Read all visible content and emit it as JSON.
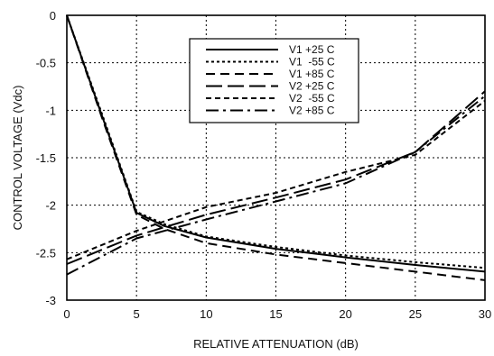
{
  "chart_data": {
    "type": "line",
    "title": "",
    "xlabel": "RELATIVE ATTENUATION (dB)",
    "ylabel": "CONTROL VOLTAGE (Vdc)",
    "xlim": [
      0,
      30
    ],
    "ylim": [
      -3,
      0
    ],
    "x_ticks": [
      0,
      5,
      10,
      15,
      20,
      25,
      30
    ],
    "y_ticks": [
      0,
      -0.5,
      -1,
      -1.5,
      -2,
      -2.5,
      -3
    ],
    "x_tick_labels": [
      "0",
      "5",
      "10",
      "15",
      "20",
      "25",
      "30"
    ],
    "y_tick_labels": [
      "0",
      "-0.5",
      "-1",
      "-1.5",
      "-2",
      "-2.5",
      "-3"
    ],
    "grid": true,
    "legend_position": "top-center",
    "series": [
      {
        "name": "V1 +25 C",
        "dash": "solid",
        "x": [
          0,
          2.5,
          5,
          7,
          10,
          15,
          20,
          25,
          30
        ],
        "y": [
          0,
          -1.05,
          -2.08,
          -2.22,
          -2.34,
          -2.46,
          -2.55,
          -2.63,
          -2.7
        ]
      },
      {
        "name": "V1  -55 C",
        "dash": "dotted",
        "x": [
          0,
          2.5,
          5,
          7,
          10,
          15,
          20,
          25,
          30
        ],
        "y": [
          0,
          -1.03,
          -2.07,
          -2.2,
          -2.33,
          -2.44,
          -2.53,
          -2.6,
          -2.66
        ]
      },
      {
        "name": "V1 +85 C",
        "dash": "dashed",
        "x": [
          0,
          2.5,
          5,
          7,
          10,
          15,
          20,
          25,
          30
        ],
        "y": [
          0,
          -1.07,
          -2.1,
          -2.25,
          -2.4,
          -2.52,
          -2.61,
          -2.7,
          -2.79
        ]
      },
      {
        "name": "V2 +25 C",
        "dash": "longdash",
        "x": [
          0,
          5,
          10,
          15,
          20,
          25,
          30
        ],
        "y": [
          -2.62,
          -2.32,
          -2.1,
          -1.92,
          -1.73,
          -1.44,
          -0.8
        ]
      },
      {
        "name": "V2  -55 C",
        "dash": "shortdash",
        "x": [
          0,
          5,
          10,
          15,
          20,
          25,
          30
        ],
        "y": [
          -2.57,
          -2.27,
          -2.02,
          -1.87,
          -1.65,
          -1.47,
          -0.9
        ]
      },
      {
        "name": "V2 +85 C",
        "dash": "dashdot",
        "x": [
          0,
          5,
          10,
          15,
          20,
          25,
          30
        ],
        "y": [
          -2.73,
          -2.35,
          -2.15,
          -1.96,
          -1.77,
          -1.44,
          -0.85
        ]
      }
    ]
  }
}
